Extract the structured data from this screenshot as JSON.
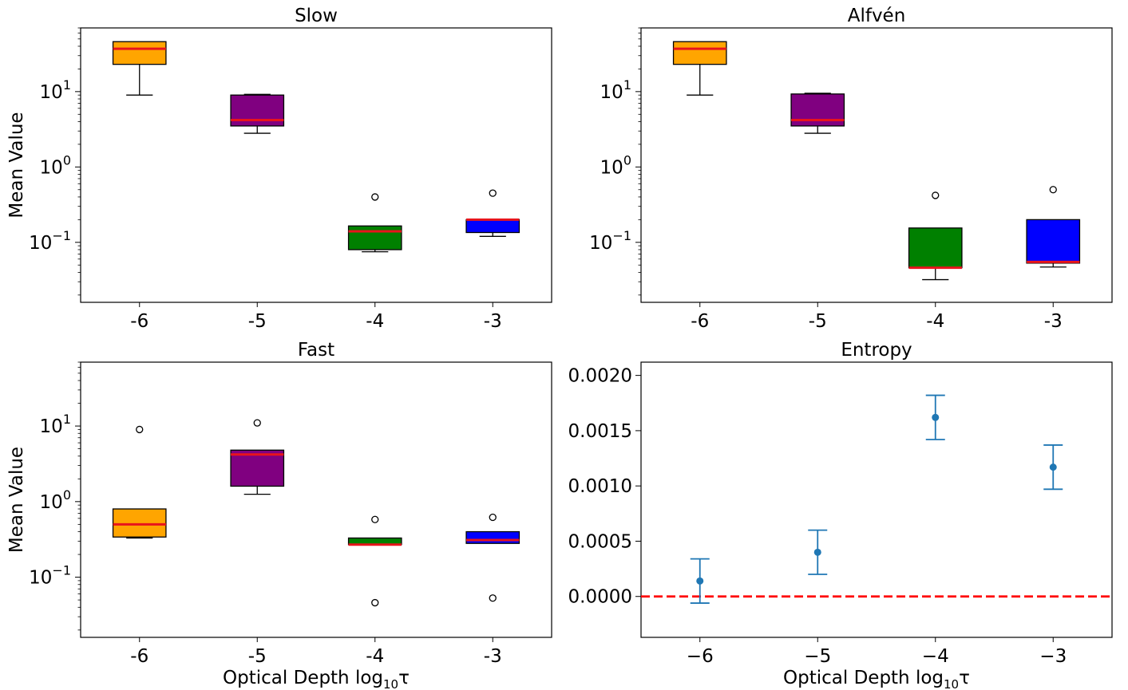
{
  "chart_data": [
    {
      "type": "box",
      "title": "Slow",
      "xlabel": "",
      "ylabel": "Mean Value",
      "yscale": "log",
      "ylim": [
        0.016,
        70
      ],
      "categories": [
        "-6",
        "-5",
        "-4",
        "-3"
      ],
      "yticks": [
        {
          "value": 10,
          "base": "10",
          "exp": "1"
        },
        {
          "value": 1,
          "base": "10",
          "exp": "0"
        },
        {
          "value": 0.1,
          "base": "10",
          "exp": "−1"
        }
      ],
      "boxes": [
        {
          "category": "-6",
          "color": "#ffa500",
          "whisker_low": 9.0,
          "q1": 23.0,
          "median": 37.0,
          "q3": 46.0,
          "whisker_high": 46.0,
          "outliers": []
        },
        {
          "category": "-5",
          "color": "#800080",
          "whisker_low": 2.8,
          "q1": 3.5,
          "median": 4.2,
          "q3": 9.0,
          "whisker_high": 9.2,
          "outliers": []
        },
        {
          "category": "-4",
          "color": "#008000",
          "whisker_low": 0.075,
          "q1": 0.08,
          "median": 0.14,
          "q3": 0.165,
          "whisker_high": 0.165,
          "outliers": [
            0.4
          ]
        },
        {
          "category": "-3",
          "color": "#0000ff",
          "whisker_low": 0.12,
          "q1": 0.135,
          "median": 0.2,
          "q3": 0.2,
          "whisker_high": 0.2,
          "outliers": [
            0.45
          ]
        }
      ]
    },
    {
      "type": "box",
      "title": "Alfvén",
      "xlabel": "",
      "ylabel": "",
      "yscale": "log",
      "ylim": [
        0.016,
        70
      ],
      "categories": [
        "-6",
        "-5",
        "-4",
        "-3"
      ],
      "yticks": [
        {
          "value": 10,
          "base": "10",
          "exp": "1"
        },
        {
          "value": 1,
          "base": "10",
          "exp": "0"
        },
        {
          "value": 0.1,
          "base": "10",
          "exp": "−1"
        }
      ],
      "boxes": [
        {
          "category": "-6",
          "color": "#ffa500",
          "whisker_low": 9.0,
          "q1": 23.0,
          "median": 37.0,
          "q3": 46.0,
          "whisker_high": 46.0,
          "outliers": []
        },
        {
          "category": "-5",
          "color": "#800080",
          "whisker_low": 2.8,
          "q1": 3.5,
          "median": 4.2,
          "q3": 9.3,
          "whisker_high": 9.5,
          "outliers": []
        },
        {
          "category": "-4",
          "color": "#008000",
          "whisker_low": 0.032,
          "q1": 0.046,
          "median": 0.046,
          "q3": 0.155,
          "whisker_high": 0.155,
          "outliers": [
            0.42
          ]
        },
        {
          "category": "-3",
          "color": "#0000ff",
          "whisker_low": 0.047,
          "q1": 0.053,
          "median": 0.055,
          "q3": 0.2,
          "whisker_high": 0.2,
          "outliers": [
            0.5
          ]
        }
      ]
    },
    {
      "type": "box",
      "title": "Fast",
      "xlabel": "Optical Depth log",
      "xlabel_sub": "10",
      "xlabel_tail": "τ",
      "ylabel": "Mean Value",
      "yscale": "log",
      "ylim": [
        0.016,
        70
      ],
      "categories": [
        "-6",
        "-5",
        "-4",
        "-3"
      ],
      "yticks": [
        {
          "value": 10,
          "base": "10",
          "exp": "1"
        },
        {
          "value": 1,
          "base": "10",
          "exp": "0"
        },
        {
          "value": 0.1,
          "base": "10",
          "exp": "−1"
        }
      ],
      "boxes": [
        {
          "category": "-6",
          "color": "#ffa500",
          "whisker_low": 0.33,
          "q1": 0.34,
          "median": 0.5,
          "q3": 0.8,
          "whisker_high": 0.8,
          "outliers": [
            9.0
          ]
        },
        {
          "category": "-5",
          "color": "#800080",
          "whisker_low": 1.25,
          "q1": 1.6,
          "median": 4.2,
          "q3": 4.8,
          "whisker_high": 4.8,
          "outliers": [
            11.0
          ]
        },
        {
          "category": "-4",
          "color": "#008000",
          "whisker_low": 0.27,
          "q1": 0.27,
          "median": 0.27,
          "q3": 0.33,
          "whisker_high": 0.33,
          "outliers": [
            0.58,
            0.046
          ]
        },
        {
          "category": "-3",
          "color": "#0000ff",
          "whisker_low": 0.28,
          "q1": 0.28,
          "median": 0.31,
          "q3": 0.4,
          "whisker_high": 0.4,
          "outliers": [
            0.62,
            0.053
          ]
        }
      ]
    },
    {
      "type": "errorbar",
      "title": "Entropy",
      "xlabel": "Optical Depth log",
      "xlabel_sub": "10",
      "xlabel_tail": "τ",
      "ylabel": "",
      "xlim": [
        -6.5,
        -2.5
      ],
      "ylim": [
        -0.00037,
        0.00212
      ],
      "xticks": [
        "−6",
        "−5",
        "−4",
        "−3"
      ],
      "yticks": [
        "0.0000",
        "0.0005",
        "0.0010",
        "0.0015",
        "0.0020"
      ],
      "color": "#1f77b4",
      "points": [
        {
          "x": -6,
          "y": 0.00014,
          "err": 0.0002
        },
        {
          "x": -5,
          "y": 0.0004,
          "err": 0.0002
        },
        {
          "x": -4,
          "y": 0.00162,
          "err": 0.0002
        },
        {
          "x": -3,
          "y": 0.00117,
          "err": 0.0002
        }
      ],
      "reference_line": {
        "y": 0.0,
        "color": "#ff0000",
        "style": "dashed"
      }
    }
  ]
}
